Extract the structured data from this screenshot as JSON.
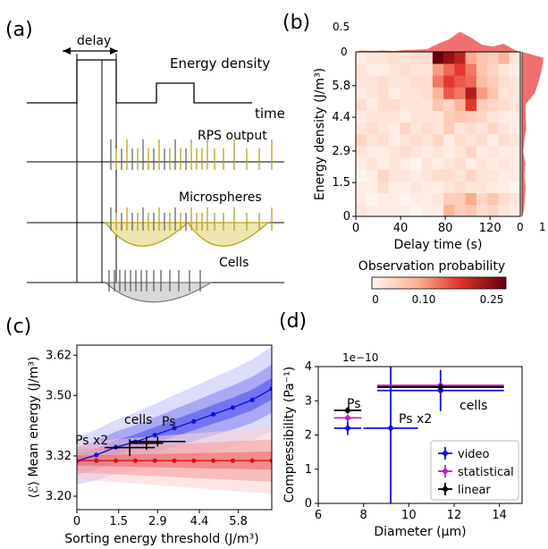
{
  "panels": {
    "a": {
      "label": "(a)",
      "delay_label": "delay",
      "energy_label": "Energy density",
      "time_label": "time",
      "rps_label": "RPS output",
      "micro_label": "Microspheres",
      "cells_label": "Cells"
    },
    "b": {
      "label": "(b)",
      "xlabel": "Delay time (s)",
      "ylabel": "Energy density (J/m³)",
      "xticks": [
        "0",
        "40",
        "80",
        "120"
      ],
      "yticks": [
        "0",
        "1.5",
        "2.9",
        "4.4",
        "5.8"
      ],
      "top_ticks": [
        "0",
        "0.5"
      ],
      "right_ticks": [
        "0",
        "1"
      ],
      "colorbar_label": "Observation probability",
      "colorbar_ticks": [
        "0",
        "0.10",
        "0.25"
      ]
    },
    "c": {
      "label": "(c)",
      "xlabel": "Sorting energy threshold (J/m³)",
      "ylabel": "⟨ℰ⟩ Mean energy (J/m³)",
      "xticks": [
        "0",
        "1.5",
        "2.9",
        "4.4",
        "5.8"
      ],
      "yticks": [
        "3.20",
        "3.32",
        "3.50",
        "3.62"
      ],
      "annotations": [
        "cells",
        "Ps",
        "Ps x2"
      ]
    },
    "d": {
      "label": "(d)",
      "xlabel": "Diameter (μm)",
      "ylabel": "Compressibility (Pa⁻¹)",
      "exponent": "1e−10",
      "xticks": [
        "6",
        "8",
        "10",
        "12",
        "14"
      ],
      "yticks": [
        "0",
        "1",
        "2",
        "3",
        "4"
      ],
      "annotations": [
        "Ps",
        "Ps x2",
        "cells"
      ],
      "legend": [
        "video",
        "statistical",
        "linear"
      ]
    }
  },
  "colors": {
    "gold": "#b8a020",
    "gold_fill": "#eee6b0",
    "gray_fill": "#d8d8d8",
    "heat_dark": "#7a0010",
    "hist_red": "#f07070",
    "blue": "#1010e0",
    "red": "#e01010",
    "magenta": "#c020c0"
  },
  "chart_data": [
    {
      "type": "heatmap",
      "xlabel": "Delay time (s)",
      "ylabel": "Energy density (J/m³)",
      "xlim": [
        0,
        147
      ],
      "ylim": [
        0,
        7.3
      ],
      "colorbar_range": [
        0,
        0.25
      ],
      "grid": [
        [
          0.02,
          0.01,
          0.01,
          0.01,
          0.01,
          0.0,
          0.01,
          0.01,
          0.08,
          0.05,
          0.06,
          0.03,
          0.04,
          0.02,
          0.01
        ],
        [
          0.01,
          0.0,
          0.01,
          0.01,
          0.0,
          0.01,
          0.01,
          0.02,
          0.05,
          0.05,
          0.09,
          0.04,
          0.06,
          0.03,
          0.02
        ],
        [
          0.01,
          0.01,
          0.03,
          0.01,
          0.01,
          0.02,
          0.01,
          0.01,
          0.02,
          0.03,
          0.02,
          0.02,
          0.01,
          0.01,
          0.0
        ],
        [
          0.0,
          0.01,
          0.04,
          0.02,
          0.02,
          0.01,
          0.02,
          0.03,
          0.03,
          0.02,
          0.04,
          0.02,
          0.02,
          0.01,
          0.01
        ],
        [
          0.01,
          0.02,
          0.01,
          0.02,
          0.01,
          0.0,
          0.02,
          0.01,
          0.02,
          0.03,
          0.01,
          0.02,
          0.01,
          0.02,
          0.01
        ],
        [
          0.02,
          0.01,
          0.01,
          0.02,
          0.03,
          0.02,
          0.01,
          0.02,
          0.01,
          0.02,
          0.04,
          0.01,
          0.02,
          0.01,
          0.01
        ],
        [
          0.04,
          0.02,
          0.03,
          0.01,
          0.02,
          0.03,
          0.02,
          0.04,
          0.01,
          0.03,
          0.02,
          0.03,
          0.01,
          0.03,
          0.02
        ],
        [
          0.02,
          0.03,
          0.02,
          0.01,
          0.04,
          0.02,
          0.03,
          0.02,
          0.05,
          0.02,
          0.03,
          0.02,
          0.04,
          0.02,
          0.01
        ],
        [
          0.01,
          0.02,
          0.02,
          0.02,
          0.01,
          0.02,
          0.02,
          0.02,
          0.05,
          0.06,
          0.05,
          0.04,
          0.02,
          0.01,
          0.01
        ],
        [
          0.03,
          0.01,
          0.03,
          0.03,
          0.02,
          0.02,
          0.02,
          0.06,
          0.04,
          0.08,
          0.16,
          0.05,
          0.04,
          0.03,
          0.02
        ],
        [
          0.01,
          0.02,
          0.03,
          0.01,
          0.02,
          0.02,
          0.03,
          0.08,
          0.14,
          0.12,
          0.2,
          0.1,
          0.06,
          0.02,
          0.02
        ],
        [
          0.02,
          0.02,
          0.03,
          0.02,
          0.02,
          0.03,
          0.03,
          0.12,
          0.16,
          0.14,
          0.13,
          0.07,
          0.05,
          0.03,
          0.02
        ],
        [
          0.02,
          0.01,
          0.01,
          0.02,
          0.03,
          0.02,
          0.02,
          0.1,
          0.13,
          0.16,
          0.12,
          0.06,
          0.04,
          0.02,
          0.01
        ],
        [
          0.01,
          0.02,
          0.02,
          0.03,
          0.02,
          0.03,
          0.03,
          0.25,
          0.22,
          0.19,
          0.09,
          0.06,
          0.05,
          0.08,
          0.02
        ]
      ],
      "top_histogram": [
        0.03,
        0.02,
        0.03,
        0.02,
        0.04,
        0.05,
        0.06,
        0.18,
        0.28,
        0.45,
        0.32,
        0.16,
        0.12,
        0.18,
        0.04
      ],
      "right_histogram": [
        0.08,
        0.12,
        0.15,
        0.1,
        0.14,
        0.05,
        0.1,
        0.18,
        0.16,
        0.15,
        0.55,
        0.72,
        0.85,
        0.92
      ]
    },
    {
      "type": "line",
      "xlabel": "Sorting energy threshold (J/m³)",
      "ylabel": "Mean energy (J/m³)",
      "xlim": [
        0,
        7.0
      ],
      "ylim": [
        3.16,
        3.65
      ],
      "series": [
        {
          "color": "#1010e0",
          "x": [
            0,
            0.7,
            1.4,
            2.1,
            2.8,
            3.5,
            4.2,
            4.9,
            5.6,
            6.3,
            7.0
          ],
          "y": [
            3.305,
            3.323,
            3.346,
            3.362,
            3.382,
            3.403,
            3.423,
            3.444,
            3.464,
            3.487,
            3.52
          ],
          "band": [
            0.018,
            0.04,
            0.07
          ]
        },
        {
          "color": "#e01010",
          "x": [
            0,
            0.7,
            1.4,
            2.1,
            2.8,
            3.5,
            4.2,
            4.9,
            5.6,
            6.3,
            7.0
          ],
          "y": [
            3.306,
            3.306,
            3.306,
            3.306,
            3.306,
            3.306,
            3.306,
            3.306,
            3.306,
            3.306,
            3.306
          ],
          "band": [
            0.015,
            0.035,
            0.055
          ]
        }
      ],
      "markers": [
        {
          "label": "cells",
          "x": 2.5,
          "y": 3.358,
          "xerr": 0.6,
          "yerr": 0.02
        },
        {
          "label": "Ps",
          "x": 2.9,
          "y": 3.363,
          "xerr": 1.0,
          "yerr": 0.015
        },
        {
          "label": "Ps x2",
          "x": 1.9,
          "y": 3.345,
          "xerr": 0.9,
          "yerr": 0.025
        }
      ]
    },
    {
      "type": "scatter",
      "xlabel": "Diameter (μm)",
      "ylabel": "Compressibility (Pa⁻¹)",
      "xlim": [
        6,
        15
      ],
      "ylim": [
        0,
        4
      ],
      "series": [
        {
          "name": "video",
          "color": "#1010e0",
          "points": [
            {
              "x": 7.3,
              "y": 2.2,
              "xerr": 0.6,
              "yerr": 0.2
            },
            {
              "x": 9.2,
              "y": 2.2,
              "xerr": 1.2,
              "yerr": 2.2
            },
            {
              "x": 11.4,
              "y": 3.3,
              "xerr": 2.8,
              "yerr": 0.6
            }
          ]
        },
        {
          "name": "statistical",
          "color": "#c020c0",
          "points": [
            {
              "x": 7.3,
              "y": 2.5,
              "xerr": 0.6,
              "yerr": 0.05
            },
            {
              "x": 11.4,
              "y": 3.45,
              "xerr": 2.8,
              "yerr": 0.05
            }
          ]
        },
        {
          "name": "linear",
          "color": "#000000",
          "points": [
            {
              "x": 7.3,
              "y": 2.72,
              "xerr": 0.6,
              "yerr": 0.05
            },
            {
              "x": 11.4,
              "y": 3.4,
              "xerr": 2.8,
              "yerr": 0.05
            }
          ]
        }
      ]
    }
  ]
}
